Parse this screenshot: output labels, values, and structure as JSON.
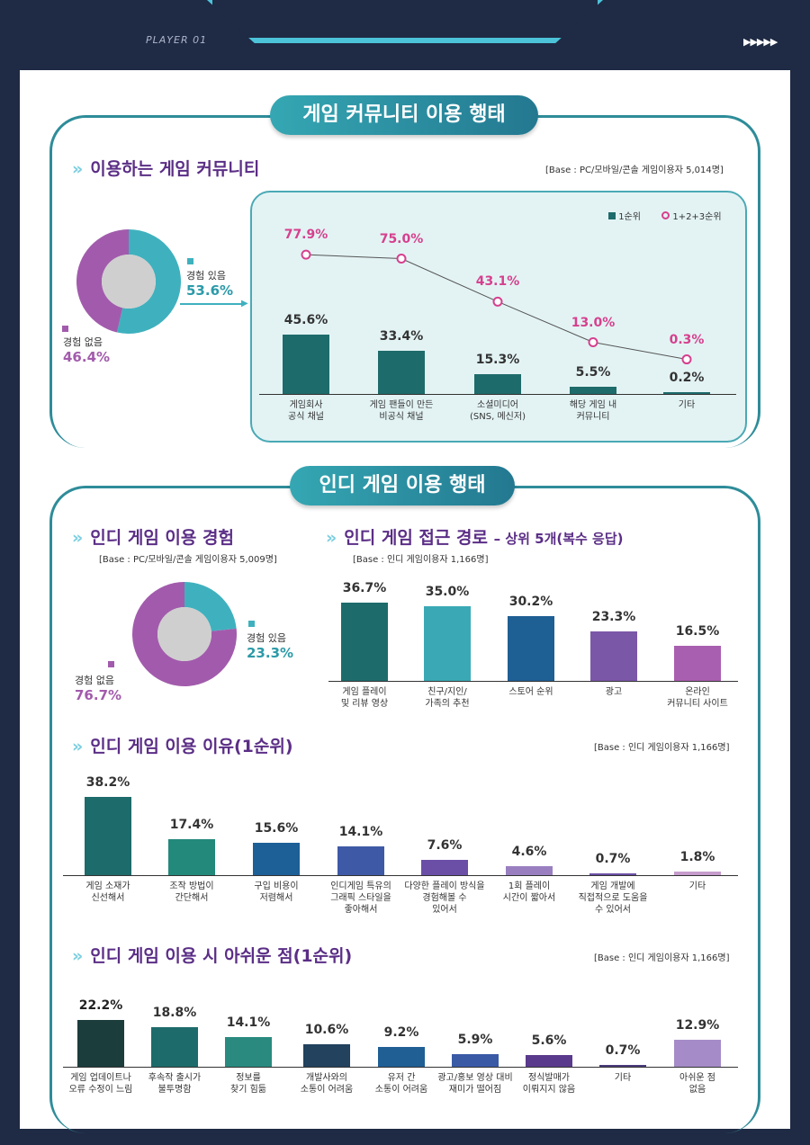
{
  "header": {
    "player": "PLAYER 01",
    "arrows": "▶▶▶▶▶"
  },
  "section1": {
    "title": "게임 커뮤니티 이용 행태",
    "subtitle": "이용하는 게임 커뮤니티",
    "base": "[Base : PC/모바일/콘솔 게임이용자 5,014명]",
    "legend": {
      "rank1": "1순위",
      "rank123": "1+2+3순위"
    }
  },
  "section2": {
    "title": "인디 게임 이용 행태",
    "exp": {
      "subtitle": "인디 게임 이용 경험",
      "base": "[Base : PC/모바일/콘솔 게임이용자 5,009명]"
    },
    "route": {
      "subtitle": "인디 게임 접근 경로",
      "suffix": "– 상위 5개(복수 응답)",
      "base": "[Base : 인디 게임이용자 1,166명]"
    },
    "reason": {
      "subtitle": "인디 게임 이용 이유(1순위)",
      "base": "[Base : 인디 게임이용자 1,166명]"
    },
    "regret": {
      "subtitle": "인디 게임 이용 시 아쉬운 점(1순위)",
      "base": "[Base : 인디 게임이용자 1,166명]"
    }
  },
  "chart_data": [
    {
      "type": "pie",
      "id": "community-experience",
      "slices": [
        {
          "label": "경험 있음",
          "value": 53.6,
          "display": "53.6%",
          "color": "#3fb1be"
        },
        {
          "label": "경험 없음",
          "value": 46.4,
          "display": "46.4%",
          "color": "#a25bac"
        }
      ]
    },
    {
      "type": "bar+line",
      "id": "community-type",
      "categories": [
        "게임회사\n공식 채널",
        "게임 팬들이 만든\n비공식 채널",
        "소셜미디어\n(SNS, 메신저)",
        "해당 게임 내\n커뮤니티",
        "기타"
      ],
      "series": [
        {
          "name": "1순위",
          "values": [
            45.6,
            33.4,
            15.3,
            5.5,
            0.2
          ],
          "labels": [
            "45.6%",
            "33.4%",
            "15.3%",
            "5.5%",
            "0.2%"
          ],
          "color": "#1e6b6b"
        },
        {
          "name": "1+2+3순위",
          "values": [
            77.9,
            75.0,
            43.1,
            13.0,
            0.3
          ],
          "labels": [
            "77.9%",
            "75.0%",
            "43.1%",
            "13.0%",
            "0.3%"
          ],
          "color": "#d6408e"
        }
      ]
    },
    {
      "type": "pie",
      "id": "indie-experience",
      "slices": [
        {
          "label": "경험 있음",
          "value": 23.3,
          "display": "23.3%",
          "color": "#3fb1be"
        },
        {
          "label": "경험 없음",
          "value": 76.7,
          "display": "76.7%",
          "color": "#a25bac"
        }
      ]
    },
    {
      "type": "bar",
      "id": "indie-route",
      "categories": [
        "게임 플레이\n및 리뷰 영상",
        "친구/지인/\n가족의 추천",
        "스토어 순위",
        "광고",
        "온라인\n커뮤니티 사이트"
      ],
      "values": [
        36.7,
        35.0,
        30.2,
        23.3,
        16.5
      ],
      "labels": [
        "36.7%",
        "35.0%",
        "30.2%",
        "23.3%",
        "16.5%"
      ],
      "colors": [
        "#1e6b6b",
        "#3aa9b5",
        "#1e5f94",
        "#7b57a8",
        "#a95fb0"
      ]
    },
    {
      "type": "bar",
      "id": "indie-reason",
      "categories": [
        "게임 소재가\n신선해서",
        "조작 방법이\n간단해서",
        "구입 비용이\n저렴해서",
        "인디게임 특유의\n그래픽 스타일을\n좋아해서",
        "다양한 플레이 방식을\n경험해볼 수\n있어서",
        "1회 플레이\n시간이 짧아서",
        "게임 개발에\n직접적으로 도움을\n수 있어서",
        "기타"
      ],
      "values": [
        38.2,
        17.4,
        15.6,
        14.1,
        7.6,
        4.6,
        0.7,
        1.8
      ],
      "labels": [
        "38.2%",
        "17.4%",
        "15.6%",
        "14.1%",
        "7.6%",
        "4.6%",
        "0.7%",
        "1.8%"
      ],
      "colors": [
        "#1e6b6b",
        "#23897a",
        "#1d5f97",
        "#3e5aa6",
        "#6b4fa6",
        "#9a7fc0",
        "#6b4fa6",
        "#c69ccc"
      ]
    },
    {
      "type": "bar",
      "id": "indie-regret",
      "categories": [
        "게임 업데이트나\n오류 수정이 느림",
        "후속작 출시가\n불투명함",
        "정보를\n찾기 힘듦",
        "개발사와의\n소통이 어려움",
        "유저 간\n소통이 어려움",
        "광고/홍보 영상 대비\n재미가 떨어짐",
        "정식발매가\n이뤄지지 않음",
        "기타",
        "아쉬운 점\n없음"
      ],
      "values": [
        22.2,
        18.8,
        14.1,
        10.6,
        9.2,
        5.9,
        5.6,
        0.7,
        12.9
      ],
      "labels": [
        "22.2%",
        "18.8%",
        "14.1%",
        "10.6%",
        "9.2%",
        "5.9%",
        "5.6%",
        "0.7%",
        "12.9%"
      ],
      "colors": [
        "#1b3d3b",
        "#1e6b6b",
        "#2a8a80",
        "#22425e",
        "#1f5f94",
        "#3a5aa6",
        "#5a3a8c",
        "#4a3a7a",
        "#a58cc8"
      ]
    }
  ]
}
